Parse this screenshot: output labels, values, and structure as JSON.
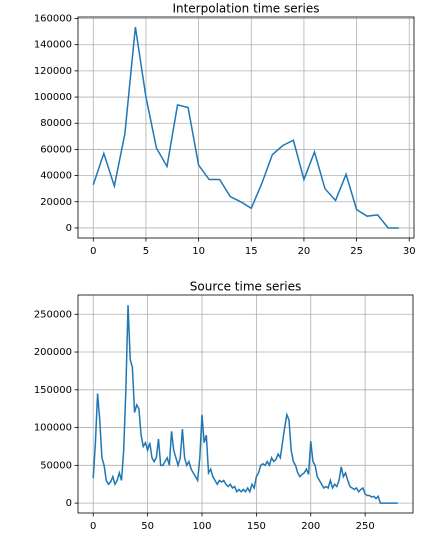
{
  "chart_data": [
    {
      "type": "line",
      "title": "Interpolation time series",
      "x": [
        0,
        1,
        2,
        3,
        4,
        5,
        6,
        7,
        8,
        9,
        10,
        11,
        12,
        13,
        14,
        15,
        16,
        17,
        18,
        19,
        20,
        21,
        22,
        23,
        24,
        25,
        26,
        27,
        28,
        29
      ],
      "series": [
        {
          "color": "#1f77b4",
          "values": [
            33000,
            57000,
            32000,
            72000,
            153500,
            100000,
            61000,
            47000,
            94000,
            92000,
            48000,
            37000,
            37000,
            24000,
            20000,
            15000,
            34000,
            56000,
            63000,
            67000,
            37000,
            58000,
            30000,
            21000,
            41000,
            14000,
            9000,
            10000,
            0,
            0
          ]
        }
      ],
      "xlim": [
        -1.45,
        30.45
      ],
      "ylim": [
        -7675,
        161175
      ],
      "xticks": [
        0,
        5,
        10,
        15,
        20,
        25,
        30
      ],
      "yticks": [
        0,
        20000,
        40000,
        60000,
        80000,
        100000,
        120000,
        140000,
        160000
      ],
      "grid": true
    },
    {
      "type": "line",
      "title": "Source time series",
      "x": [
        0,
        2,
        4,
        6,
        8,
        10,
        12,
        14,
        16,
        18,
        20,
        22,
        24,
        26,
        28,
        30,
        32,
        34,
        36,
        38,
        40,
        42,
        44,
        46,
        48,
        50,
        52,
        54,
        56,
        58,
        60,
        62,
        64,
        66,
        68,
        70,
        72,
        74,
        76,
        78,
        80,
        82,
        84,
        86,
        88,
        90,
        92,
        94,
        96,
        98,
        100,
        102,
        104,
        106,
        108,
        110,
        112,
        114,
        116,
        118,
        120,
        122,
        124,
        126,
        128,
        130,
        132,
        134,
        136,
        138,
        140,
        142,
        144,
        146,
        148,
        150,
        152,
        154,
        156,
        158,
        160,
        162,
        164,
        166,
        168,
        170,
        172,
        174,
        176,
        178,
        180,
        182,
        184,
        186,
        188,
        190,
        192,
        194,
        196,
        198,
        200,
        202,
        204,
        206,
        208,
        210,
        212,
        214,
        216,
        218,
        220,
        222,
        224,
        226,
        228,
        230,
        232,
        234,
        236,
        238,
        240,
        242,
        244,
        246,
        248,
        250,
        252,
        254,
        256,
        258,
        260,
        262,
        264,
        266,
        268,
        270,
        272,
        274,
        276,
        278,
        280
      ],
      "series": [
        {
          "color": "#1f77b4",
          "values": [
            33000,
            80000,
            145000,
            110000,
            60000,
            50000,
            30000,
            25000,
            28000,
            35000,
            25000,
            30000,
            40000,
            30000,
            70000,
            150000,
            262000,
            190000,
            180000,
            120000,
            130000,
            125000,
            90000,
            75000,
            80000,
            70000,
            80000,
            60000,
            55000,
            60000,
            85000,
            50000,
            50000,
            55000,
            60000,
            50000,
            95000,
            70000,
            60000,
            50000,
            60000,
            98000,
            60000,
            50000,
            55000,
            45000,
            40000,
            35000,
            30000,
            60000,
            117000,
            80000,
            90000,
            40000,
            45000,
            35000,
            30000,
            25000,
            30000,
            28000,
            30000,
            25000,
            22000,
            25000,
            20000,
            22000,
            15000,
            18000,
            15000,
            18000,
            15000,
            20000,
            15000,
            25000,
            20000,
            35000,
            40000,
            50000,
            52000,
            50000,
            55000,
            50000,
            60000,
            55000,
            58000,
            65000,
            60000,
            80000,
            100000,
            117000,
            110000,
            70000,
            55000,
            50000,
            40000,
            35000,
            38000,
            40000,
            45000,
            38000,
            82000,
            55000,
            50000,
            35000,
            30000,
            25000,
            20000,
            22000,
            20000,
            30000,
            20000,
            25000,
            22000,
            30000,
            48000,
            35000,
            40000,
            30000,
            22000,
            20000,
            18000,
            20000,
            15000,
            18000,
            20000,
            12000,
            10000,
            10000,
            8000,
            9000,
            6000,
            9000,
            0,
            0,
            0,
            0,
            0,
            0,
            0,
            0,
            0
          ]
        }
      ],
      "xlim": [
        -14,
        294
      ],
      "ylim": [
        -13100,
        275500
      ],
      "xticks": [
        0,
        50,
        100,
        150,
        200,
        250
      ],
      "yticks": [
        0,
        50000,
        100000,
        150000,
        200000,
        250000
      ],
      "grid": true
    }
  ]
}
